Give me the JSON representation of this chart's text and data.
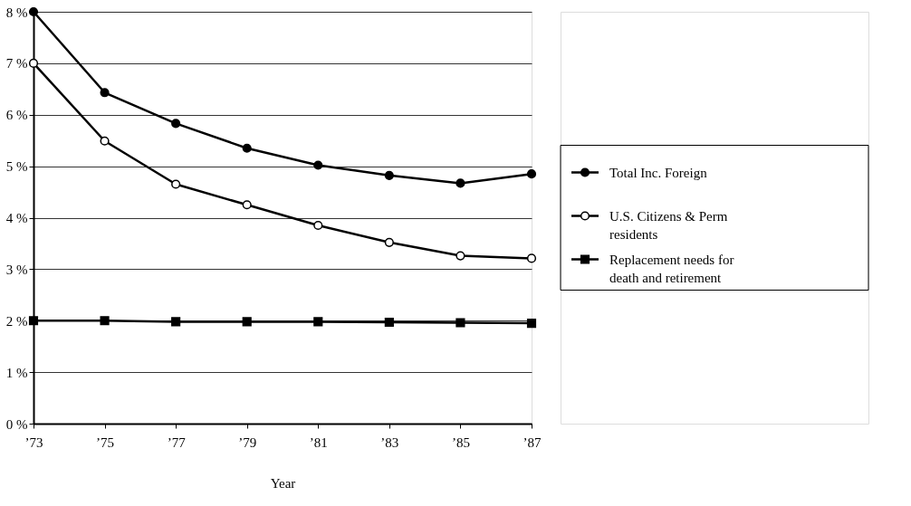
{
  "chart_data": {
    "type": "line",
    "xlabel": "Year",
    "categories": [
      "’73",
      "’75",
      "’77",
      "’79",
      "’81",
      "’83",
      "’85",
      "’87"
    ],
    "series": [
      {
        "name": "Total Inc. Foreign",
        "color": "#000000",
        "marker": "circle",
        "values": [
          8.0,
          6.43,
          5.83,
          5.35,
          5.02,
          4.82,
          4.67,
          4.85
        ]
      },
      {
        "name": "U.S. Citizens & Perm residents",
        "color": "#000000",
        "marker": "open circle",
        "values": [
          7.0,
          5.49,
          4.65,
          4.25,
          3.85,
          3.52,
          3.26,
          3.21
        ]
      },
      {
        "name": "Replacement needs for death and retirement",
        "color": "#000000",
        "marker": "square",
        "values": [
          2.0,
          2.0,
          1.98,
          1.98,
          1.98,
          1.97,
          1.96,
          1.95
        ]
      }
    ],
    "ylim": [
      0,
      8
    ],
    "yticks": [
      {
        "value": 0,
        "label": "0 %"
      },
      {
        "value": 1,
        "label": "1 %"
      },
      {
        "value": 2,
        "label": "2 %"
      },
      {
        "value": 3,
        "label": "3 %"
      },
      {
        "value": 4,
        "label": "4 %"
      },
      {
        "value": 5,
        "label": "5 %"
      },
      {
        "value": 6,
        "label": "6 %"
      },
      {
        "value": 7,
        "label": "7 %"
      },
      {
        "value": 8,
        "label": "8 %"
      }
    ],
    "grid": "y",
    "legend": "right",
    "line_style": "solid"
  }
}
